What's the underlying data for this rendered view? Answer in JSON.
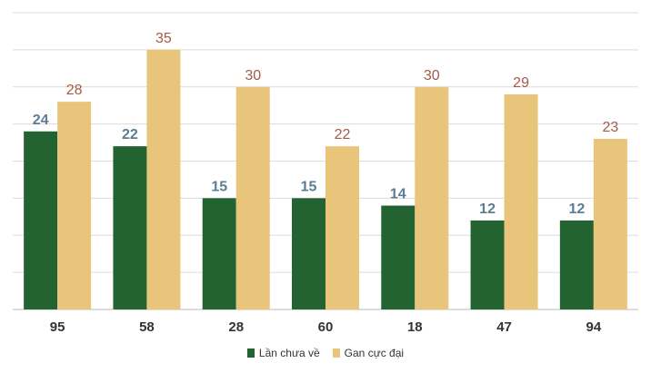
{
  "chart_data": {
    "type": "bar",
    "categories": [
      "95",
      "58",
      "28",
      "60",
      "18",
      "47",
      "94"
    ],
    "series": [
      {
        "name": "Lần chưa về",
        "values": [
          24,
          22,
          15,
          15,
          14,
          12,
          12
        ],
        "color": "#236331",
        "label_color": "#5b7d94"
      },
      {
        "name": "Gan cực đại",
        "values": [
          28,
          35,
          30,
          22,
          30,
          29,
          23
        ],
        "color": "#e8c57a",
        "label_color": "#a55a47"
      }
    ],
    "ylim": [
      0,
      40
    ],
    "grid": true,
    "legend_position": "bottom"
  }
}
